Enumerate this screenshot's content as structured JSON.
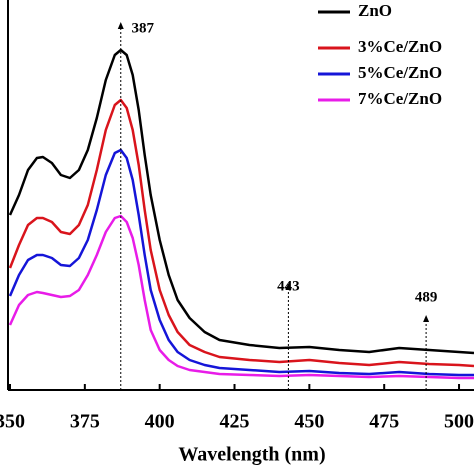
{
  "chart_data": {
    "type": "line",
    "x_label": "Wavelength (nm)",
    "x": [
      350,
      353,
      356,
      359,
      361,
      364,
      367,
      370,
      373,
      376,
      379,
      382,
      385,
      387,
      389,
      391,
      393,
      395,
      397,
      400,
      403,
      406,
      410,
      415,
      420,
      430,
      440,
      450,
      460,
      470,
      480,
      490,
      500,
      505
    ],
    "series": [
      {
        "name": "ZnO",
        "color": "#000000",
        "values": [
          175,
          195,
          220,
          232,
          233,
          227,
          215,
          212,
          220,
          240,
          272,
          310,
          335,
          340,
          335,
          315,
          280,
          235,
          195,
          150,
          115,
          90,
          72,
          58,
          50,
          45,
          42,
          43,
          40,
          38,
          42,
          40,
          38,
          37
        ]
      },
      {
        "name": "3%Ce/ZnO",
        "color": "#d9141c",
        "values": [
          122,
          145,
          165,
          172,
          172,
          168,
          158,
          156,
          165,
          185,
          220,
          260,
          285,
          290,
          282,
          260,
          225,
          180,
          140,
          100,
          75,
          58,
          45,
          38,
          33,
          30,
          28,
          30,
          27,
          25,
          28,
          26,
          25,
          24
        ]
      },
      {
        "name": "5%Ce/ZnO",
        "color": "#1515d8",
        "values": [
          94,
          115,
          130,
          135,
          135,
          132,
          125,
          124,
          132,
          150,
          180,
          215,
          237,
          240,
          232,
          210,
          175,
          135,
          100,
          70,
          50,
          38,
          30,
          25,
          22,
          20,
          18,
          19,
          17,
          16,
          18,
          16,
          15,
          15
        ]
      },
      {
        "name": "7%Ce/ZnO",
        "color": "#e81ce8",
        "values": [
          65,
          85,
          95,
          98,
          97,
          95,
          93,
          94,
          100,
          115,
          135,
          158,
          172,
          174,
          168,
          152,
          125,
          90,
          60,
          40,
          30,
          24,
          20,
          18,
          16,
          15,
          14,
          15,
          14,
          13,
          14,
          13,
          12,
          12
        ]
      }
    ],
    "xlim": [
      350,
      505
    ],
    "xticks": [
      350,
      375,
      400,
      425,
      450,
      475,
      500
    ],
    "ylim": [
      0,
      390
    ],
    "yticks": [],
    "annotations": [
      {
        "x": 387
      },
      {
        "x": 443
      },
      {
        "x": 489
      }
    ],
    "legend": "upper right"
  }
}
